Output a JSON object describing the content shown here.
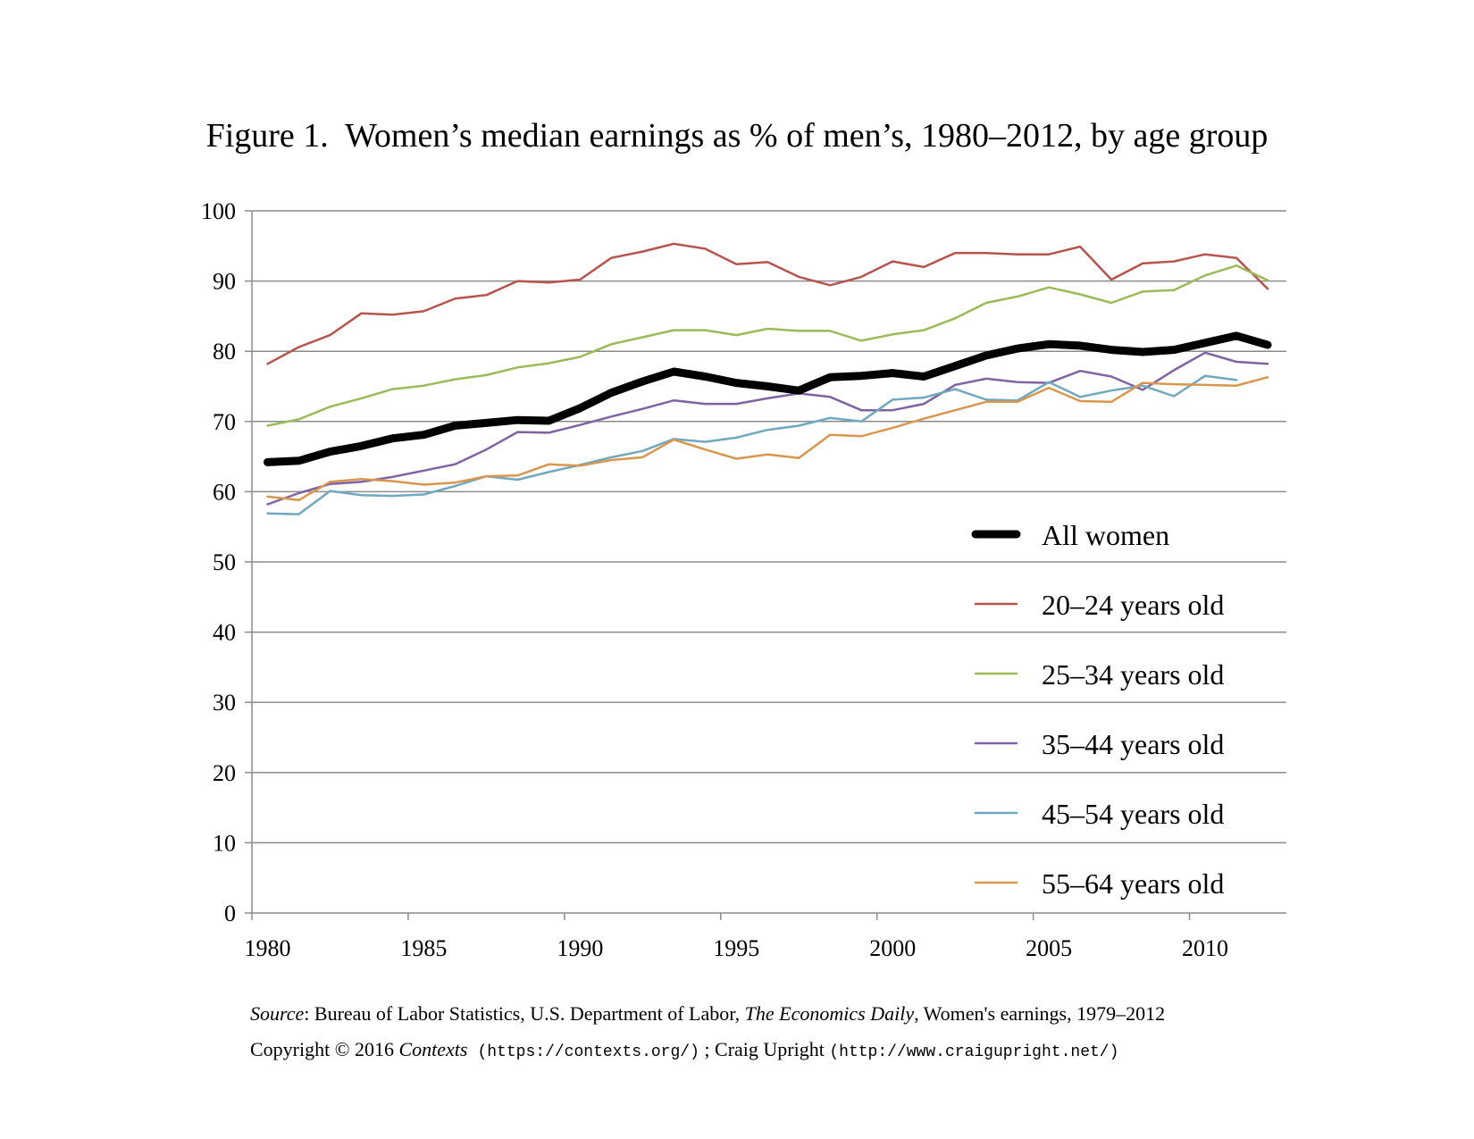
{
  "title": "Figure 1.  Women’s median earnings as % of men’s, 1980–2012, by age group",
  "footer": {
    "source_label": "Source",
    "source_text_1": ": Bureau of Labor Statistics, U.S. Department of Labor, ",
    "source_publication": "The Economics Daily",
    "source_text_2": ", Women's earnings, 1979–2012",
    "copyright_text": "Copyright © 2016 ",
    "copyright_pub": "Contexts",
    "contexts_url": "(https://contexts.org/)",
    "separator": " ; Craig Upright ",
    "upright_url": "(http://www.craigupright.net/)"
  },
  "chart_data": {
    "type": "line",
    "title": "Figure 1.  Women’s median earnings as % of men’s, 1980–2012, by age group",
    "xlabel": "",
    "ylabel": "",
    "xlim": [
      1979.5,
      2012.6
    ],
    "ylim": [
      0,
      100
    ],
    "x_ticks": [
      1980,
      1985,
      1990,
      1995,
      2000,
      2005,
      2010
    ],
    "y_ticks": [
      0,
      10,
      20,
      30,
      40,
      50,
      60,
      70,
      80,
      90,
      100
    ],
    "grid": true,
    "legend_position": "right-center",
    "x": [
      1980,
      1981,
      1982,
      1983,
      1984,
      1985,
      1986,
      1987,
      1988,
      1989,
      1990,
      1991,
      1992,
      1993,
      1994,
      1995,
      1996,
      1997,
      1998,
      1999,
      2000,
      2001,
      2002,
      2003,
      2004,
      2005,
      2006,
      2007,
      2008,
      2009,
      2010,
      2011,
      2012
    ],
    "series": [
      {
        "name": "All women",
        "color": "#000000",
        "width": 9,
        "values": [
          64.2,
          64.4,
          65.7,
          66.5,
          67.6,
          68.1,
          69.4,
          69.8,
          70.2,
          70.1,
          71.9,
          74.1,
          75.7,
          77.1,
          76.4,
          75.5,
          75.0,
          74.4,
          76.3,
          76.5,
          76.9,
          76.4,
          77.9,
          79.4,
          80.4,
          81.0,
          80.8,
          80.2,
          79.9,
          80.2,
          81.2,
          82.2,
          80.9
        ]
      },
      {
        "name": "20–24 years old",
        "color": "#b5554e",
        "width": 2.5,
        "values": [
          78.2,
          80.6,
          82.3,
          85.4,
          85.2,
          85.7,
          87.5,
          88.0,
          90.0,
          89.8,
          90.2,
          93.3,
          94.2,
          95.3,
          94.6,
          92.4,
          92.7,
          90.6,
          89.4,
          90.6,
          92.8,
          92.0,
          94.0,
          94.0,
          93.8,
          93.8,
          94.9,
          90.2,
          92.5,
          92.8,
          93.8,
          93.3,
          88.9
        ]
      },
      {
        "name": "25–34 years old",
        "color": "#9bba59",
        "width": 2.5,
        "values": [
          69.4,
          70.3,
          72.1,
          73.3,
          74.6,
          75.1,
          76.0,
          76.6,
          77.7,
          78.3,
          79.2,
          81.0,
          82.0,
          83.0,
          83.0,
          82.3,
          83.2,
          82.9,
          82.9,
          81.5,
          82.4,
          83.0,
          84.7,
          86.9,
          87.8,
          89.1,
          88.1,
          86.9,
          88.5,
          88.7,
          90.8,
          92.2,
          90.1
        ]
      },
      {
        "name": "35–44 years old",
        "color": "#8063a2",
        "width": 2.5,
        "values": [
          58.2,
          59.8,
          61.1,
          61.4,
          62.1,
          63.0,
          63.9,
          66.0,
          68.5,
          68.4,
          69.5,
          70.7,
          71.8,
          73.0,
          72.5,
          72.5,
          73.3,
          74.0,
          73.5,
          71.6,
          71.6,
          72.5,
          75.2,
          76.1,
          75.6,
          75.5,
          77.2,
          76.4,
          74.5,
          77.3,
          79.8,
          78.5,
          78.2
        ]
      },
      {
        "name": "45–54 years old",
        "color": "#6fa8bf",
        "width": 2.5,
        "values": [
          56.9,
          56.8,
          60.1,
          59.5,
          59.4,
          59.6,
          60.8,
          62.2,
          61.7,
          62.8,
          63.8,
          64.9,
          65.8,
          67.5,
          67.1,
          67.7,
          68.8,
          69.4,
          70.5,
          70.0,
          73.1,
          73.4,
          74.6,
          73.1,
          73.0,
          75.6,
          73.5,
          74.4,
          75.1,
          73.6,
          76.5,
          75.9,
          null
        ]
      },
      {
        "name": "55–64 years old",
        "color": "#d9964e",
        "width": 2.5,
        "values": [
          59.3,
          58.8,
          61.4,
          61.8,
          61.5,
          61.0,
          61.3,
          62.2,
          62.3,
          63.9,
          63.7,
          64.5,
          64.9,
          67.4,
          66.0,
          64.7,
          65.3,
          64.8,
          68.1,
          67.9,
          69.1,
          70.4,
          71.6,
          72.8,
          72.8,
          74.8,
          72.9,
          72.8,
          75.5,
          75.3,
          75.2,
          75.1,
          76.3
        ]
      }
    ]
  }
}
